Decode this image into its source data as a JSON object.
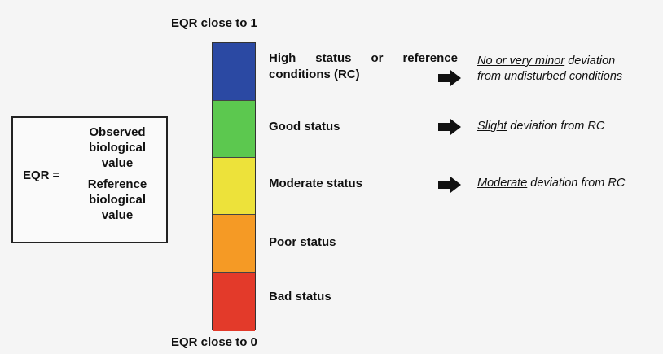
{
  "formula": {
    "lhs": "EQR",
    "equals": "=",
    "numerator": [
      "Observed",
      "biological",
      "value"
    ],
    "denominator": [
      "Reference",
      "biological",
      "value"
    ]
  },
  "scale": {
    "top_label": "EQR close to 1",
    "bottom_label": "EQR close to 0",
    "segments": [
      {
        "label_line1": "High status or reference",
        "label_line2": "conditions (RC)",
        "color": "#2b49a3"
      },
      {
        "label": "Good status",
        "color": "#5cc84f"
      },
      {
        "label": "Moderate status",
        "color": "#ede23a"
      },
      {
        "label": "Poor status",
        "color": "#f59a25"
      },
      {
        "label": "Bad status",
        "color": "#e33a2a"
      }
    ]
  },
  "notes": [
    {
      "emph": "No or very minor",
      "rest": " deviation",
      "line2": "from undisturbed conditions"
    },
    {
      "emph": "Slight",
      "rest": " deviation from RC"
    },
    {
      "emph": "Moderate",
      "rest": " deviation from RC"
    }
  ],
  "arrow_icon": "right-arrow-icon"
}
